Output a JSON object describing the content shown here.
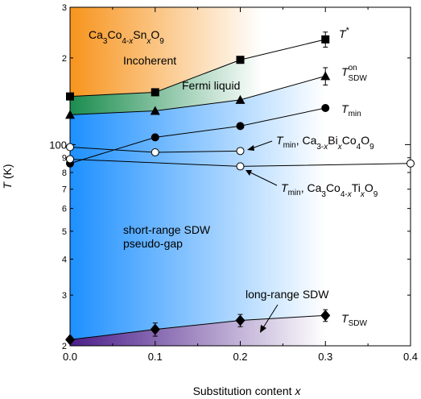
{
  "chart_data": {
    "type": "scatter",
    "xlabel": "Substitution content x",
    "ylabel": "T (K)",
    "xlim": [
      0.0,
      0.4
    ],
    "ylim": [
      20,
      300
    ],
    "yscale": "log",
    "x_ticks": [
      "0.0",
      "0.1",
      "0.2",
      "0.3",
      "0.4"
    ],
    "x_tick_values": [
      0.0,
      0.1,
      0.2,
      0.3,
      0.4
    ],
    "y_major_ticks": [
      {
        "value": 100,
        "label": "100"
      }
    ],
    "y_minor_ticks": [
      {
        "value": 20,
        "label": "2"
      },
      {
        "value": 30,
        "label": "3"
      },
      {
        "value": 40,
        "label": "4"
      },
      {
        "value": 50,
        "label": "5"
      },
      {
        "value": 60,
        "label": "6"
      },
      {
        "value": 70,
        "label": "7"
      },
      {
        "value": 80,
        "label": "8"
      },
      {
        "value": 90,
        "label": "9"
      },
      {
        "value": 200,
        "label": "2"
      },
      {
        "value": 300,
        "label": "3"
      }
    ],
    "regions": [
      {
        "label": "Ca3Co4-xSnxO9",
        "color": "#f7941d"
      },
      {
        "label": "Incoherent",
        "color": "#f7941d"
      },
      {
        "label": "Fermi liquid",
        "color": "#1f9a5a"
      },
      {
        "label": "short-range SDW pseudo-gap",
        "color": "#1e90ff"
      },
      {
        "label": "long-range SDW",
        "color": "#5b2a8c"
      }
    ],
    "series": [
      {
        "name": "T*",
        "marker": "square",
        "x": [
          0.0,
          0.1,
          0.2,
          0.3
        ],
        "y": [
          147,
          152,
          197,
          232
        ],
        "err": [
          0,
          0,
          0,
          14
        ]
      },
      {
        "name": "T_SDW^on",
        "marker": "triangle",
        "x": [
          0.0,
          0.1,
          0.2,
          0.3
        ],
        "y": [
          127,
          131,
          143,
          173
        ],
        "err": [
          0,
          0,
          0,
          12
        ]
      },
      {
        "name": "T_min",
        "marker": "circle",
        "x": [
          0.0,
          0.1,
          0.2,
          0.3
        ],
        "y": [
          86,
          106,
          116,
          134
        ],
        "err": [
          0,
          0,
          0,
          0
        ]
      },
      {
        "name": "T_min, Ca3-xBixCo4O9",
        "marker": "open-circle",
        "x": [
          0.0,
          0.1,
          0.2
        ],
        "y": [
          98,
          94,
          95
        ],
        "err": [
          0,
          0,
          0
        ]
      },
      {
        "name": "T_min, Ca3Co4-xTixO9",
        "marker": "open-circle",
        "x": [
          0.0,
          0.2,
          0.4
        ],
        "y": [
          89,
          84,
          86
        ],
        "err": [
          0,
          0,
          0
        ]
      },
      {
        "name": "T_SDW",
        "marker": "diamond",
        "x": [
          0.0,
          0.1,
          0.2,
          0.3
        ],
        "y": [
          21,
          22.8,
          24.5,
          25.5
        ],
        "err": [
          0,
          1.2,
          1.2,
          1.2
        ]
      }
    ],
    "legend_labels": [
      {
        "key": "tstar",
        "base": "T",
        "sup": "*",
        "sub": ""
      },
      {
        "key": "tsdwon",
        "base": "T",
        "sup": "on",
        "sub": "SDW"
      },
      {
        "key": "tmin",
        "base": "T",
        "sup": "",
        "sub": "min"
      },
      {
        "key": "tmin_bi",
        "base": "T",
        "sup": "",
        "sub": "min",
        "rest": ", Ca3-xBixCo4O9"
      },
      {
        "key": "tmin_ti",
        "base": "T",
        "sup": "",
        "sub": "min",
        "rest": ", Ca3Co4-xTixO9"
      },
      {
        "key": "tsdw",
        "base": "T",
        "sup": "",
        "sub": "SDW"
      }
    ]
  }
}
